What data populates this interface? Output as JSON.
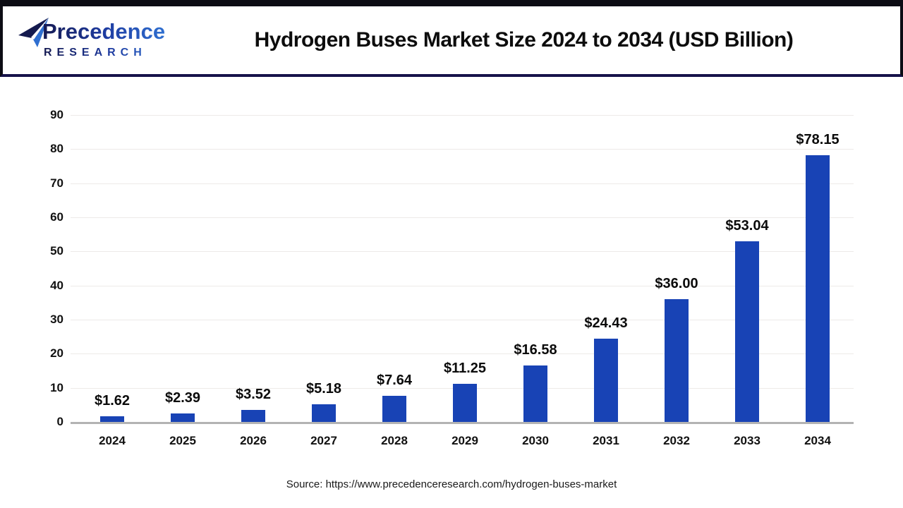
{
  "header": {
    "logo": {
      "line1": "Precedence",
      "line2": "RESEARCH"
    },
    "title": "Hydrogen Buses Market Size 2024 to 2034 (USD Billion)"
  },
  "chart_data": {
    "type": "bar",
    "title": "Hydrogen Buses Market Size 2024 to 2034 (USD Billion)",
    "categories": [
      "2024",
      "2025",
      "2026",
      "2027",
      "2028",
      "2029",
      "2030",
      "2031",
      "2032",
      "2033",
      "2034"
    ],
    "values": [
      1.62,
      2.39,
      3.52,
      5.18,
      7.64,
      11.25,
      16.58,
      24.43,
      36.0,
      53.04,
      78.15
    ],
    "value_labels": [
      "$1.62",
      "$2.39",
      "$3.52",
      "$5.18",
      "$7.64",
      "$11.25",
      "$16.58",
      "$24.43",
      "$36.00",
      "$53.04",
      "$78.15"
    ],
    "xlabel": "",
    "ylabel": "",
    "ylim": [
      0,
      90
    ],
    "yticks": [
      0,
      10,
      20,
      30,
      40,
      50,
      60,
      70,
      80,
      90
    ],
    "grid": true,
    "legend": "none",
    "bar_color": "#1843b5"
  },
  "footer": {
    "source": "Source: https://www.precedenceresearch.com/hydrogen-buses-market"
  },
  "colors": {
    "bar": "#1843b5",
    "grid": "#edeae8",
    "baseline": "#b3b3b3",
    "header_border": "#0c0c14",
    "header_rule": "#16134a",
    "logo_dark": "#151a52",
    "logo_blue": "#2f6fd0"
  }
}
